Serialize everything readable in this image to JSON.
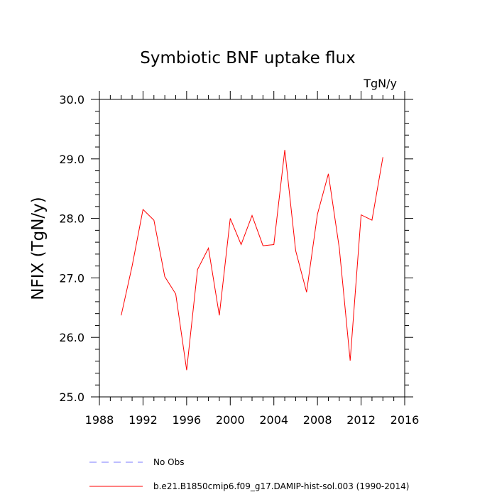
{
  "chart_data": {
    "type": "line",
    "title": "Symbiotic BNF uptake flux",
    "units": "TgN/y",
    "xlabel": "",
    "ylabel": "NFIX  (TgN/y)",
    "xlim": [
      1988,
      2016
    ],
    "ylim": [
      25.0,
      30.0
    ],
    "x_ticks": [
      1988,
      1992,
      1996,
      2000,
      2004,
      2008,
      2012,
      2016
    ],
    "x_tick_labels": [
      "1988",
      "1992",
      "1996",
      "2000",
      "2004",
      "2008",
      "2012",
      "2016"
    ],
    "y_ticks": [
      25.0,
      26.0,
      27.0,
      28.0,
      29.0,
      30.0
    ],
    "y_tick_labels": [
      "25.0",
      "26.0",
      "27.0",
      "28.0",
      "29.0",
      "30.0"
    ],
    "grid": false,
    "legend_position": "bottom",
    "series": [
      {
        "name": "b.e21.B1850cmip6.f09_g17.DAMIP-hist-sol.003 (1990-2014)",
        "color": "#ff0000",
        "style": "solid",
        "x": [
          1990,
          1991,
          1992,
          1993,
          1994,
          1995,
          1996,
          1997,
          1998,
          1999,
          2000,
          2001,
          2002,
          2003,
          2004,
          2005,
          2006,
          2007,
          2008,
          2009,
          2010,
          2011,
          2012,
          2013,
          2014
        ],
        "y": [
          26.37,
          27.2,
          28.15,
          27.97,
          27.02,
          26.73,
          25.45,
          27.14,
          27.5,
          26.37,
          28.0,
          27.56,
          28.05,
          27.54,
          27.56,
          29.15,
          27.46,
          26.76,
          28.07,
          28.75,
          27.5,
          25.61,
          28.06,
          27.97,
          29.03
        ]
      }
    ],
    "legend": [
      {
        "label": "No Obs",
        "color": "#7b7bff",
        "style": "dashed"
      },
      {
        "label": "b.e21.B1850cmip6.f09_g17.DAMIP-hist-sol.003 (1990-2014)",
        "color": "#ff0000",
        "style": "solid"
      }
    ]
  }
}
